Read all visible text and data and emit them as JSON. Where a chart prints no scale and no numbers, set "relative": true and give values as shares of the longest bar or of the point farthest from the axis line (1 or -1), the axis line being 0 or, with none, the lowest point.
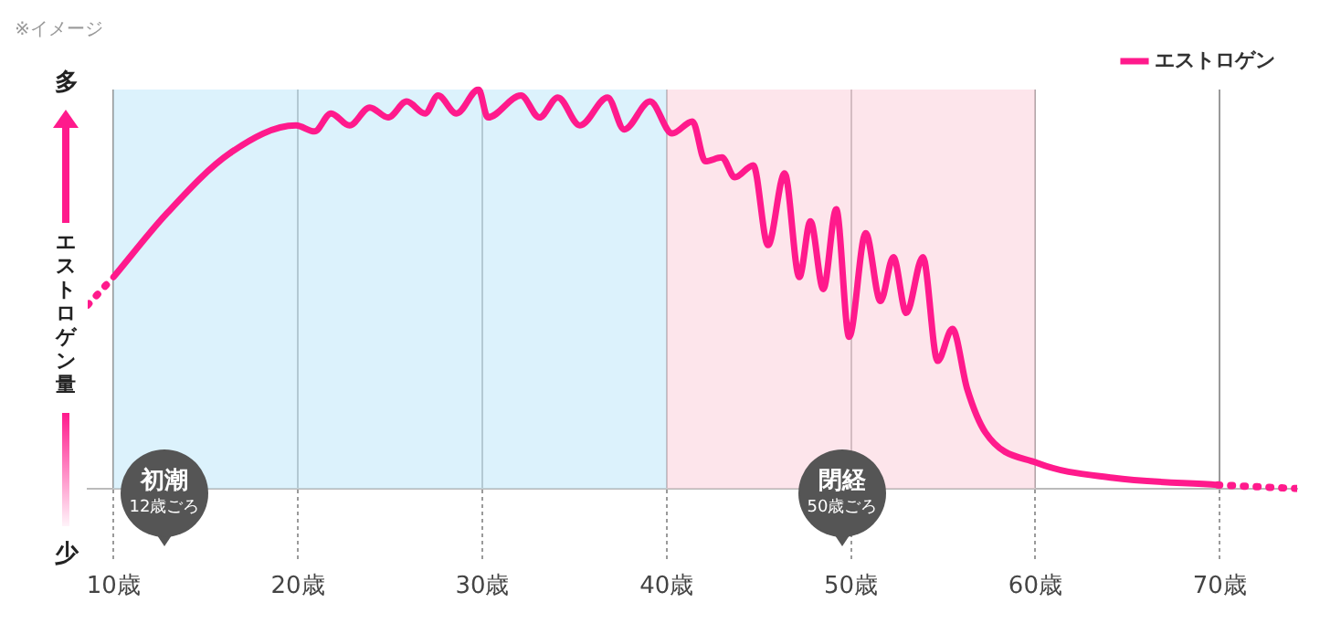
{
  "chart_data": {
    "type": "line",
    "relative": true,
    "ylabel": "エストロゲン量",
    "annotations": [
      "※イメージ",
      "多",
      "少",
      "初潮\n12歳ごろ",
      "閉経\n50歳ごろ"
    ],
    "xticks": [
      {
        "value": 10,
        "label": "10歳"
      },
      {
        "value": 20,
        "label": "20歳"
      },
      {
        "value": 30,
        "label": "30歳"
      },
      {
        "value": 40,
        "label": "40歳"
      },
      {
        "value": 50,
        "label": "50歳"
      },
      {
        "value": 60,
        "label": "60歳"
      },
      {
        "value": 70,
        "label": "70歳"
      }
    ],
    "xlim": [
      8.6,
      74.2
    ],
    "bands": [
      {
        "axis": "x",
        "from": 10,
        "to": 40,
        "color": "#c4eafa"
      },
      {
        "axis": "x",
        "from": 40,
        "to": 60,
        "color": "#fcd4de"
      }
    ],
    "grid": "x",
    "legend": "top right",
    "marker": "none",
    "series": [
      {
        "name": "エストロゲン",
        "color": "#ff1a8c",
        "line_style": "solid",
        "x": [
          10,
          12.9,
          16.3,
          19.9,
          20.9,
          21.8,
          22.8,
          23.9,
          24.9,
          25.9,
          26.9,
          27.6,
          28.6,
          29.8,
          30.3,
          32.1,
          33.1,
          34.1,
          35.3,
          36.8,
          37.7,
          39.1,
          40.3,
          41.4,
          42.1,
          43.0,
          43.7,
          44.7,
          45.5,
          46.4,
          47.2,
          47.8,
          48.5,
          49.2,
          49.9,
          50.8,
          51.6,
          52.3,
          53.0,
          53.9,
          54.7,
          55.5,
          56.3,
          57.3,
          60.1,
          64.2,
          69.9
        ],
        "values": [
          0.53,
          0.69,
          0.84,
          0.91,
          0.895,
          0.94,
          0.91,
          0.955,
          0.93,
          0.97,
          0.94,
          0.985,
          0.94,
          1,
          0.93,
          0.985,
          0.93,
          0.98,
          0.91,
          0.98,
          0.9,
          0.97,
          0.89,
          0.92,
          0.82,
          0.83,
          0.78,
          0.81,
          0.61,
          0.79,
          0.53,
          0.67,
          0.5,
          0.7,
          0.38,
          0.64,
          0.47,
          0.58,
          0.44,
          0.58,
          0.32,
          0.4,
          0.25,
          0.14,
          0.064,
          0.027,
          0.009
        ]
      },
      {
        "color": "#ff1a8c",
        "line_style": "dotted",
        "x": [
          8.6,
          10,
          40,
          69.9,
          74.2
        ],
        "values": [
          0.46,
          0.53,
          null,
          0.009,
          0
        ]
      }
    ]
  }
}
